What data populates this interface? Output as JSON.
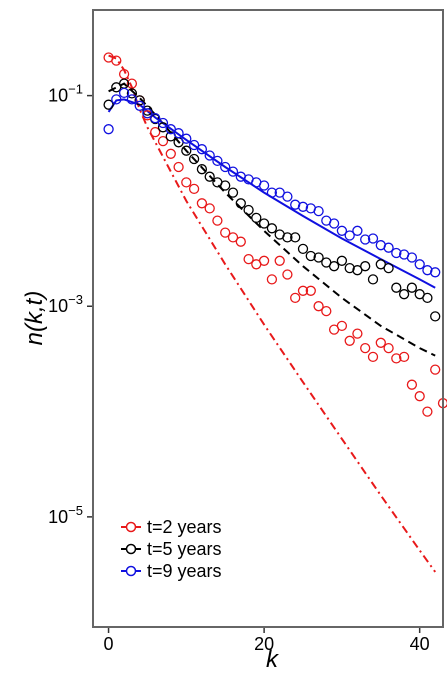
{
  "chart_data": {
    "type": "scatter",
    "xlabel": "k",
    "ylabel": "n(k,t)",
    "xlim": [
      -2,
      43
    ],
    "xscale": "linear",
    "yscale": "log",
    "ylim": [
      9e-07,
      0.65
    ],
    "x_ticks": [
      0,
      20,
      40
    ],
    "y_ticks": [
      {
        "value": 0.1,
        "base": "10",
        "exp": "−1"
      },
      {
        "value": 0.001,
        "base": "10",
        "exp": "−3"
      },
      {
        "value": 1e-05,
        "base": "10",
        "exp": "−5"
      }
    ],
    "grid": false,
    "legend_position": "bottom-left",
    "series": [
      {
        "name": "t=2 years",
        "color": "#e8191a",
        "line_style": "dashdot",
        "points": [
          [
            0,
            0.23
          ],
          [
            1,
            0.215
          ],
          [
            2,
            0.16
          ],
          [
            3,
            0.13
          ],
          [
            4,
            0.09
          ],
          [
            5,
            0.065
          ],
          [
            6,
            0.045
          ],
          [
            7,
            0.037
          ],
          [
            8,
            0.028
          ],
          [
            9,
            0.021
          ],
          [
            10,
            0.015
          ],
          [
            11,
            0.013
          ],
          [
            12,
            0.0095
          ],
          [
            13,
            0.0085
          ],
          [
            14,
            0.0065
          ],
          [
            15,
            0.005
          ],
          [
            16,
            0.0045
          ],
          [
            17,
            0.0041
          ],
          [
            18,
            0.0028
          ],
          [
            19,
            0.0025
          ],
          [
            20,
            0.0027
          ],
          [
            21,
            0.0018
          ],
          [
            22,
            0.0027
          ],
          [
            23,
            0.002
          ],
          [
            24,
            0.0012
          ],
          [
            25,
            0.0014
          ],
          [
            26,
            0.0014
          ],
          [
            27,
            0.001
          ],
          [
            28,
            0.0009
          ],
          [
            29,
            0.0006
          ],
          [
            30,
            0.00065
          ],
          [
            31,
            0.00047
          ],
          [
            32,
            0.00055
          ],
          [
            33,
            0.0004
          ],
          [
            34,
            0.00033
          ],
          [
            35,
            0.00045
          ],
          [
            36,
            0.0004
          ],
          [
            37,
            0.00032
          ],
          [
            38,
            0.00033
          ],
          [
            39,
            0.00018
          ],
          [
            40,
            0.00014
          ],
          [
            41,
            0.0001
          ],
          [
            42,
            0.00025
          ],
          [
            43,
            0.00012
          ]
        ],
        "line": [
          [
            0,
            0.24
          ],
          [
            1,
            0.225
          ],
          [
            2,
            0.175
          ],
          [
            3,
            0.12
          ],
          [
            4,
            0.074
          ],
          [
            5,
            0.05
          ],
          [
            10,
            0.01
          ],
          [
            15,
            0.0025
          ],
          [
            20,
            0.00067
          ],
          [
            25,
            0.00019
          ],
          [
            30,
            5.5e-05
          ],
          [
            35,
            1.6e-05
          ],
          [
            40,
            4.8e-06
          ],
          [
            42,
            3e-06
          ]
        ]
      },
      {
        "name": "t=5 years",
        "color": "#000000",
        "line_style": "dashed",
        "points": [
          [
            0,
            0.082
          ],
          [
            1,
            0.12
          ],
          [
            2,
            0.13
          ],
          [
            3,
            0.105
          ],
          [
            4,
            0.09
          ],
          [
            5,
            0.072
          ],
          [
            6,
            0.06
          ],
          [
            7,
            0.05
          ],
          [
            8,
            0.041
          ],
          [
            9,
            0.036
          ],
          [
            10,
            0.03
          ],
          [
            11,
            0.025
          ],
          [
            12,
            0.02
          ],
          [
            13,
            0.017
          ],
          [
            14,
            0.015
          ],
          [
            15,
            0.014
          ],
          [
            16,
            0.012
          ],
          [
            17,
            0.0095
          ],
          [
            18,
            0.0082
          ],
          [
            19,
            0.0069
          ],
          [
            20,
            0.0061
          ],
          [
            21,
            0.0055
          ],
          [
            22,
            0.0048
          ],
          [
            23,
            0.0045
          ],
          [
            24,
            0.0045
          ],
          [
            25,
            0.0035
          ],
          [
            26,
            0.003
          ],
          [
            27,
            0.0029
          ],
          [
            28,
            0.0026
          ],
          [
            29,
            0.0024
          ],
          [
            30,
            0.0027
          ],
          [
            31,
            0.0023
          ],
          [
            32,
            0.0022
          ],
          [
            33,
            0.0024
          ],
          [
            34,
            0.0018
          ],
          [
            35,
            0.0025
          ],
          [
            36,
            0.0023
          ],
          [
            37,
            0.0015
          ],
          [
            38,
            0.0013
          ],
          [
            39,
            0.0015
          ],
          [
            40,
            0.0013
          ],
          [
            41,
            0.0012
          ],
          [
            42,
            0.0008
          ]
        ],
        "line": [
          [
            0,
            0.11
          ],
          [
            2,
            0.13
          ],
          [
            4,
            0.095
          ],
          [
            6,
            0.066
          ],
          [
            10,
            0.03
          ],
          [
            15,
            0.012
          ],
          [
            20,
            0.0052
          ],
          [
            25,
            0.0024
          ],
          [
            30,
            0.0012
          ],
          [
            35,
            0.00065
          ],
          [
            40,
            0.0004
          ],
          [
            42,
            0.00034
          ]
        ]
      },
      {
        "name": "t=9 years",
        "color": "#1010e0",
        "line_style": "solid",
        "points": [
          [
            0,
            0.048
          ],
          [
            1,
            0.092
          ],
          [
            2,
            0.106
          ],
          [
            3,
            0.092
          ],
          [
            4,
            0.08
          ],
          [
            5,
            0.068
          ],
          [
            6,
            0.061
          ],
          [
            7,
            0.055
          ],
          [
            8,
            0.048
          ],
          [
            9,
            0.044
          ],
          [
            10,
            0.039
          ],
          [
            11,
            0.034
          ],
          [
            12,
            0.031
          ],
          [
            13,
            0.027
          ],
          [
            14,
            0.024
          ],
          [
            15,
            0.021
          ],
          [
            16,
            0.019
          ],
          [
            17,
            0.017
          ],
          [
            18,
            0.016
          ],
          [
            19,
            0.015
          ],
          [
            20,
            0.014
          ],
          [
            21,
            0.012
          ],
          [
            22,
            0.012
          ],
          [
            23,
            0.011
          ],
          [
            24,
            0.0092
          ],
          [
            25,
            0.0088
          ],
          [
            26,
            0.0085
          ],
          [
            27,
            0.008
          ],
          [
            28,
            0.0065
          ],
          [
            29,
            0.0061
          ],
          [
            30,
            0.0052
          ],
          [
            31,
            0.0047
          ],
          [
            32,
            0.0052
          ],
          [
            33,
            0.0043
          ],
          [
            34,
            0.0044
          ],
          [
            35,
            0.0038
          ],
          [
            36,
            0.0036
          ],
          [
            37,
            0.0032
          ],
          [
            38,
            0.0031
          ],
          [
            39,
            0.0029
          ],
          [
            40,
            0.0025
          ],
          [
            41,
            0.0022
          ],
          [
            42,
            0.0021
          ]
        ],
        "line": [
          [
            0,
            0.07
          ],
          [
            1,
            0.09
          ],
          [
            2,
            0.092
          ],
          [
            4,
            0.082
          ],
          [
            6,
            0.062
          ],
          [
            10,
            0.038
          ],
          [
            15,
            0.021
          ],
          [
            20,
            0.012
          ],
          [
            25,
            0.0072
          ],
          [
            30,
            0.0044
          ],
          [
            35,
            0.0028
          ],
          [
            40,
            0.0018
          ],
          [
            42,
            0.0015
          ]
        ]
      }
    ]
  }
}
